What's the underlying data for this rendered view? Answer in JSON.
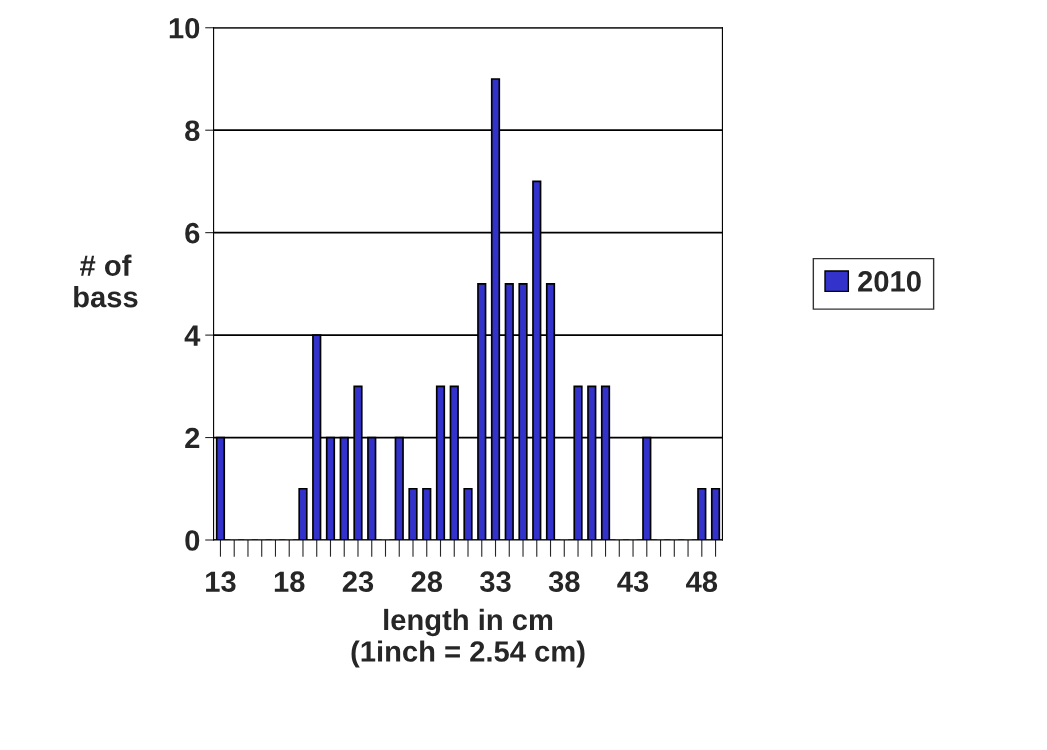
{
  "chart_data": {
    "type": "bar",
    "xlabel": "length in cm\n(1inch = 2.54 cm)",
    "ylabel": "# of\nbass",
    "categories": [
      "13",
      null,
      null,
      null,
      null,
      "18",
      null,
      null,
      null,
      null,
      "23",
      null,
      null,
      null,
      null,
      "28",
      null,
      null,
      null,
      null,
      "33",
      null,
      null,
      null,
      null,
      "38",
      null,
      null,
      null,
      null,
      "43",
      null,
      null,
      null,
      null,
      "48",
      null
    ],
    "series": [
      {
        "name": "2010",
        "color": "#3333cc",
        "values": [
          2,
          0,
          0,
          0,
          0,
          0,
          1,
          4,
          2,
          2,
          3,
          2,
          0,
          2,
          1,
          1,
          3,
          3,
          1,
          5,
          9,
          5,
          5,
          7,
          5,
          0,
          3,
          3,
          3,
          0,
          0,
          2,
          0,
          0,
          0,
          1,
          1
        ]
      }
    ],
    "ylim": [
      0,
      10
    ],
    "yticks": [
      0,
      2,
      4,
      6,
      8,
      10
    ],
    "grid": "y",
    "legend": "right"
  }
}
